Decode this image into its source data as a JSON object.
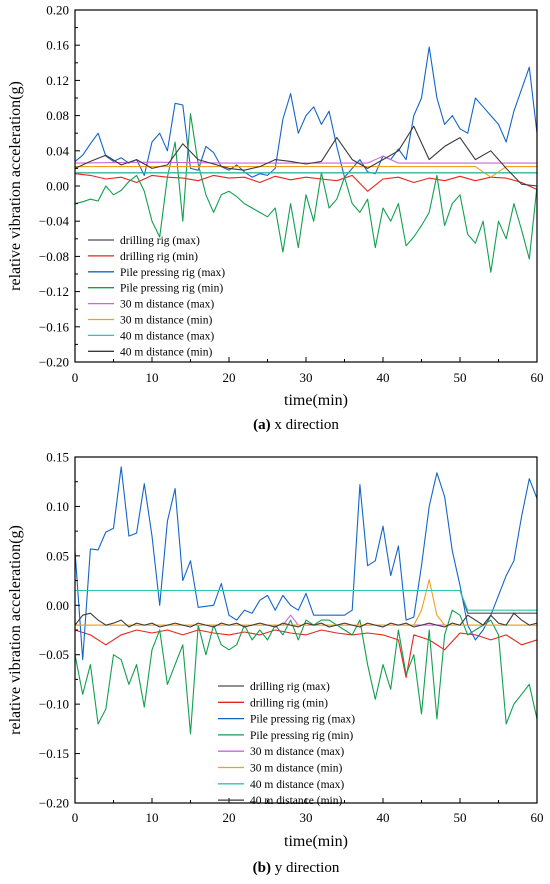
{
  "chart_data": [
    {
      "type": "line",
      "caption_label": "(a)",
      "caption_text": " x direction",
      "xlabel": "time(min)",
      "ylabel": "relative vibration acceleration(g)",
      "xlim": [
        0,
        60
      ],
      "ylim": [
        -0.2,
        0.2
      ],
      "xticks": [
        "0",
        "10",
        "20",
        "30",
        "40",
        "50",
        "60"
      ],
      "yticks": [
        "0.20",
        "0.16",
        "0.12",
        "0.08",
        "0.04",
        "0.00",
        "−0.04",
        "−0.08",
        "−0.12",
        "−0.16",
        "−0.20"
      ],
      "legend_position": "bottom-left",
      "series": [
        {
          "name": "drilling rig (max)",
          "color": "#4d4d4d",
          "x": [
            0,
            60
          ],
          "y": [
            0.015,
            0.015
          ]
        },
        {
          "name": "drilling rig (min)",
          "color": "#e8251b",
          "x": [
            0,
            2,
            4,
            6,
            8,
            10,
            12,
            14,
            16,
            18,
            20,
            22,
            24,
            26,
            28,
            30,
            32,
            34,
            36,
            38,
            40,
            42,
            44,
            46,
            48,
            50,
            52,
            54,
            56,
            58,
            60
          ],
          "y": [
            0.014,
            0.012,
            0.008,
            0.01,
            0.004,
            0.012,
            0.01,
            0.009,
            0.006,
            0.012,
            0.009,
            0.01,
            0.004,
            0.011,
            0.007,
            0.01,
            0.008,
            0.006,
            0.012,
            -0.006,
            0.008,
            0.01,
            0.004,
            0.009,
            0.006,
            0.011,
            0.006,
            0.01,
            0.009,
            0.004,
            -0.004
          ]
        },
        {
          "name": "Pile pressing rig (max)",
          "color": "#1565c8",
          "x": [
            0,
            1,
            2,
            3,
            4,
            5,
            6,
            7,
            8,
            9,
            10,
            11,
            12,
            13,
            14,
            15,
            16,
            17,
            18,
            19,
            20,
            21,
            22,
            23,
            24,
            25,
            26,
            27,
            28,
            29,
            30,
            31,
            32,
            33,
            34,
            35,
            36,
            37,
            38,
            39,
            40,
            41,
            42,
            43,
            44,
            45,
            46,
            47,
            48,
            49,
            50,
            51,
            52,
            53,
            54,
            55,
            56,
            57,
            58,
            59,
            60
          ],
          "y": [
            0.028,
            0.035,
            0.048,
            0.06,
            0.034,
            0.028,
            0.032,
            0.026,
            0.03,
            0.012,
            0.05,
            0.06,
            0.04,
            0.094,
            0.092,
            0.02,
            0.018,
            0.045,
            0.038,
            0.022,
            0.018,
            0.024,
            0.016,
            0.01,
            0.014,
            0.012,
            0.02,
            0.076,
            0.105,
            0.06,
            0.08,
            0.09,
            0.07,
            0.085,
            0.045,
            0.01,
            0.02,
            0.03,
            0.016,
            0.014,
            0.034,
            0.03,
            0.042,
            0.03,
            0.08,
            0.1,
            0.158,
            0.1,
            0.07,
            0.08,
            0.065,
            0.06,
            0.1,
            0.09,
            0.08,
            0.07,
            0.05,
            0.085,
            0.11,
            0.135,
            0.06
          ]
        },
        {
          "name": "Pile pressing rig (min)",
          "color": "#12a050",
          "x": [
            0,
            1,
            2,
            3,
            4,
            5,
            6,
            7,
            8,
            9,
            10,
            11,
            12,
            13,
            14,
            15,
            16,
            17,
            18,
            19,
            20,
            21,
            22,
            23,
            24,
            25,
            26,
            27,
            28,
            29,
            30,
            31,
            32,
            33,
            34,
            35,
            36,
            37,
            38,
            39,
            40,
            41,
            42,
            43,
            44,
            45,
            46,
            47,
            48,
            49,
            50,
            51,
            52,
            53,
            54,
            55,
            56,
            57,
            58,
            59,
            60
          ],
          "y": [
            -0.02,
            -0.018,
            -0.015,
            -0.017,
            0.0,
            -0.01,
            -0.005,
            0.005,
            0.012,
            -0.006,
            -0.04,
            -0.058,
            0.01,
            0.05,
            -0.04,
            0.082,
            0.025,
            -0.01,
            -0.03,
            -0.01,
            -0.006,
            -0.012,
            -0.02,
            -0.025,
            -0.03,
            -0.035,
            -0.025,
            -0.075,
            -0.02,
            -0.07,
            -0.01,
            -0.04,
            0.015,
            -0.025,
            -0.015,
            0.01,
            -0.02,
            -0.03,
            -0.015,
            -0.07,
            -0.025,
            -0.04,
            -0.02,
            -0.068,
            -0.058,
            -0.045,
            -0.03,
            0.012,
            -0.045,
            -0.02,
            -0.01,
            -0.055,
            -0.065,
            -0.04,
            -0.098,
            -0.04,
            -0.06,
            -0.02,
            -0.05,
            -0.083,
            0.0
          ]
        },
        {
          "name": "30 m distance (max)",
          "color": "#cc66dd",
          "x": [
            0,
            10,
            20,
            30,
            38,
            40,
            42,
            50,
            60
          ],
          "y": [
            0.026,
            0.027,
            0.026,
            0.026,
            0.026,
            0.034,
            0.026,
            0.026,
            0.026
          ]
        },
        {
          "name": "30 m distance (min)",
          "color": "#f0a020",
          "x": [
            0,
            10,
            20,
            30,
            40,
            50,
            52,
            54,
            56,
            60
          ],
          "y": [
            0.022,
            0.022,
            0.022,
            0.022,
            0.022,
            0.022,
            0.022,
            0.01,
            0.022,
            0.022
          ]
        },
        {
          "name": "40 m distance (max)",
          "color": "#2ec4b0",
          "x": [
            0,
            60
          ],
          "y": [
            0.015,
            0.015
          ]
        },
        {
          "name": "40 m distance (min)",
          "color": "#3a3a3a",
          "x": [
            0,
            2,
            4,
            6,
            8,
            10,
            12,
            14,
            16,
            18,
            20,
            22,
            24,
            26,
            28,
            30,
            32,
            34,
            36,
            38,
            40,
            42,
            44,
            46,
            48,
            50,
            52,
            54,
            56,
            58,
            60
          ],
          "y": [
            0.02,
            0.028,
            0.035,
            0.024,
            0.03,
            0.02,
            0.024,
            0.048,
            0.03,
            0.025,
            0.02,
            0.018,
            0.022,
            0.03,
            0.028,
            0.025,
            0.028,
            0.055,
            0.03,
            0.02,
            0.03,
            0.04,
            0.068,
            0.03,
            0.045,
            0.055,
            0.03,
            0.04,
            0.02,
            0.002,
            0.0
          ]
        }
      ]
    },
    {
      "type": "line",
      "caption_label": "(b)",
      "caption_text": " y direction",
      "xlabel": "time(min)",
      "ylabel": "relative vibration acceleration(g)",
      "xlim": [
        0,
        60
      ],
      "ylim": [
        -0.2,
        0.15
      ],
      "xticks": [
        "0",
        "10",
        "20",
        "30",
        "40",
        "50",
        "60"
      ],
      "yticks": [
        "0.15",
        "0.10",
        "0.05",
        "0.00",
        "−0.05",
        "−0.10",
        "−0.15",
        "−0.20"
      ],
      "legend_position": "bottom-center",
      "series": [
        {
          "name": "drilling rig (max)",
          "color": "#4d4d4d",
          "x": [
            0,
            50,
            51,
            60
          ],
          "y": [
            0.015,
            0.015,
            -0.008,
            -0.008
          ]
        },
        {
          "name": "drilling rig (min)",
          "color": "#e8251b",
          "x": [
            0,
            2,
            4,
            6,
            8,
            10,
            12,
            14,
            16,
            18,
            20,
            22,
            24,
            26,
            28,
            30,
            32,
            34,
            36,
            38,
            40,
            42,
            43,
            44,
            46,
            48,
            50,
            52,
            54,
            56,
            58,
            60
          ],
          "y": [
            -0.025,
            -0.03,
            -0.04,
            -0.03,
            -0.025,
            -0.028,
            -0.025,
            -0.03,
            -0.025,
            -0.028,
            -0.03,
            -0.027,
            -0.03,
            -0.025,
            -0.028,
            -0.03,
            -0.025,
            -0.028,
            -0.03,
            -0.028,
            -0.03,
            -0.035,
            -0.073,
            -0.03,
            -0.035,
            -0.045,
            -0.028,
            -0.03,
            -0.035,
            -0.03,
            -0.04,
            -0.035
          ]
        },
        {
          "name": "Pile pressing rig (max)",
          "color": "#1565c8",
          "x": [
            0,
            1,
            2,
            3,
            4,
            5,
            6,
            7,
            8,
            9,
            10,
            11,
            12,
            13,
            14,
            15,
            16,
            17,
            18,
            19,
            20,
            21,
            22,
            23,
            24,
            25,
            26,
            27,
            28,
            29,
            30,
            31,
            32,
            33,
            34,
            35,
            36,
            37,
            38,
            39,
            40,
            41,
            42,
            43,
            44,
            45,
            46,
            47,
            48,
            49,
            50,
            51,
            52,
            53,
            54,
            55,
            56,
            57,
            58,
            59,
            60
          ],
          "y": [
            0.055,
            -0.055,
            0.057,
            0.056,
            0.074,
            0.078,
            0.14,
            0.07,
            0.073,
            0.123,
            0.07,
            0.0,
            0.085,
            0.118,
            0.025,
            0.045,
            -0.002,
            -0.001,
            0.0,
            0.022,
            -0.01,
            -0.015,
            -0.005,
            -0.008,
            0.005,
            0.01,
            -0.005,
            0.01,
            0.0,
            -0.005,
            0.012,
            -0.01,
            -0.01,
            -0.01,
            -0.01,
            -0.01,
            -0.005,
            0.122,
            0.04,
            0.045,
            0.08,
            0.03,
            0.06,
            -0.015,
            -0.012,
            0.04,
            0.1,
            0.134,
            0.11,
            0.055,
            0.02,
            -0.02,
            -0.035,
            -0.025,
            -0.01,
            0.01,
            0.03,
            0.045,
            0.09,
            0.128,
            0.108
          ]
        },
        {
          "name": "Pile pressing rig (min)",
          "color": "#12a050",
          "x": [
            0,
            1,
            2,
            3,
            4,
            5,
            6,
            7,
            8,
            9,
            10,
            11,
            12,
            13,
            14,
            15,
            16,
            17,
            18,
            19,
            20,
            21,
            22,
            23,
            24,
            25,
            26,
            27,
            28,
            29,
            30,
            31,
            32,
            33,
            34,
            35,
            36,
            37,
            38,
            39,
            40,
            41,
            42,
            43,
            44,
            45,
            46,
            47,
            48,
            49,
            50,
            51,
            52,
            53,
            54,
            55,
            56,
            57,
            58,
            59,
            60
          ],
          "y": [
            -0.05,
            -0.09,
            -0.06,
            -0.12,
            -0.105,
            -0.05,
            -0.055,
            -0.08,
            -0.06,
            -0.103,
            -0.045,
            -0.025,
            -0.08,
            -0.06,
            -0.04,
            -0.13,
            -0.02,
            -0.05,
            -0.02,
            -0.04,
            -0.045,
            -0.04,
            -0.02,
            -0.035,
            -0.025,
            -0.035,
            -0.02,
            -0.03,
            -0.015,
            -0.035,
            -0.015,
            -0.02,
            -0.015,
            -0.015,
            -0.02,
            -0.025,
            -0.03,
            -0.015,
            -0.06,
            -0.095,
            -0.06,
            -0.085,
            -0.025,
            -0.07,
            -0.05,
            -0.11,
            -0.025,
            -0.115,
            -0.03,
            -0.005,
            -0.01,
            -0.03,
            -0.025,
            -0.02,
            -0.015,
            -0.03,
            -0.12,
            -0.1,
            -0.09,
            -0.08,
            -0.115
          ]
        },
        {
          "name": "30 m distance (max)",
          "color": "#cc66dd",
          "x": [
            0,
            10,
            20,
            27,
            28,
            29,
            40,
            50,
            60
          ],
          "y": [
            -0.02,
            -0.02,
            -0.02,
            -0.02,
            -0.01,
            -0.02,
            -0.02,
            -0.02,
            -0.02
          ]
        },
        {
          "name": "30 m distance (min)",
          "color": "#f0a020",
          "x": [
            0,
            10,
            20,
            30,
            40,
            44,
            45,
            46,
            47,
            48,
            50,
            60
          ],
          "y": [
            -0.02,
            -0.02,
            -0.02,
            -0.02,
            -0.02,
            -0.02,
            -0.005,
            0.026,
            -0.01,
            -0.02,
            -0.02,
            -0.02
          ]
        },
        {
          "name": "40 m distance (max)",
          "color": "#2ec4b0",
          "x": [
            0,
            50,
            51,
            60
          ],
          "y": [
            0.015,
            0.015,
            -0.005,
            -0.005
          ]
        },
        {
          "name": "40 m distance (min)",
          "color": "#3a3a3a",
          "x": [
            0,
            1,
            2,
            3,
            4,
            5,
            6,
            7,
            8,
            9,
            10,
            11,
            12,
            13,
            14,
            15,
            16,
            17,
            18,
            19,
            20,
            21,
            22,
            23,
            24,
            25,
            26,
            27,
            28,
            29,
            30,
            31,
            32,
            33,
            34,
            35,
            36,
            37,
            38,
            39,
            40,
            41,
            42,
            43,
            44,
            45,
            46,
            47,
            48,
            49,
            50,
            51,
            52,
            53,
            54,
            55,
            56,
            57,
            58,
            59,
            60
          ],
          "y": [
            -0.02,
            -0.01,
            -0.008,
            -0.015,
            -0.02,
            -0.018,
            -0.015,
            -0.022,
            -0.018,
            -0.02,
            -0.018,
            -0.022,
            -0.02,
            -0.018,
            -0.02,
            -0.022,
            -0.018,
            -0.02,
            -0.022,
            -0.018,
            -0.02,
            -0.018,
            -0.022,
            -0.02,
            -0.018,
            -0.02,
            -0.022,
            -0.018,
            -0.02,
            -0.022,
            -0.018,
            -0.02,
            -0.018,
            -0.022,
            -0.02,
            -0.018,
            -0.02,
            -0.022,
            -0.018,
            -0.02,
            -0.022,
            -0.018,
            -0.02,
            -0.018,
            -0.022,
            -0.02,
            -0.018,
            -0.02,
            -0.022,
            -0.018,
            -0.02,
            -0.01,
            -0.015,
            -0.02,
            -0.01,
            -0.018,
            -0.02,
            -0.008,
            -0.015,
            -0.02,
            -0.018
          ]
        }
      ]
    }
  ]
}
